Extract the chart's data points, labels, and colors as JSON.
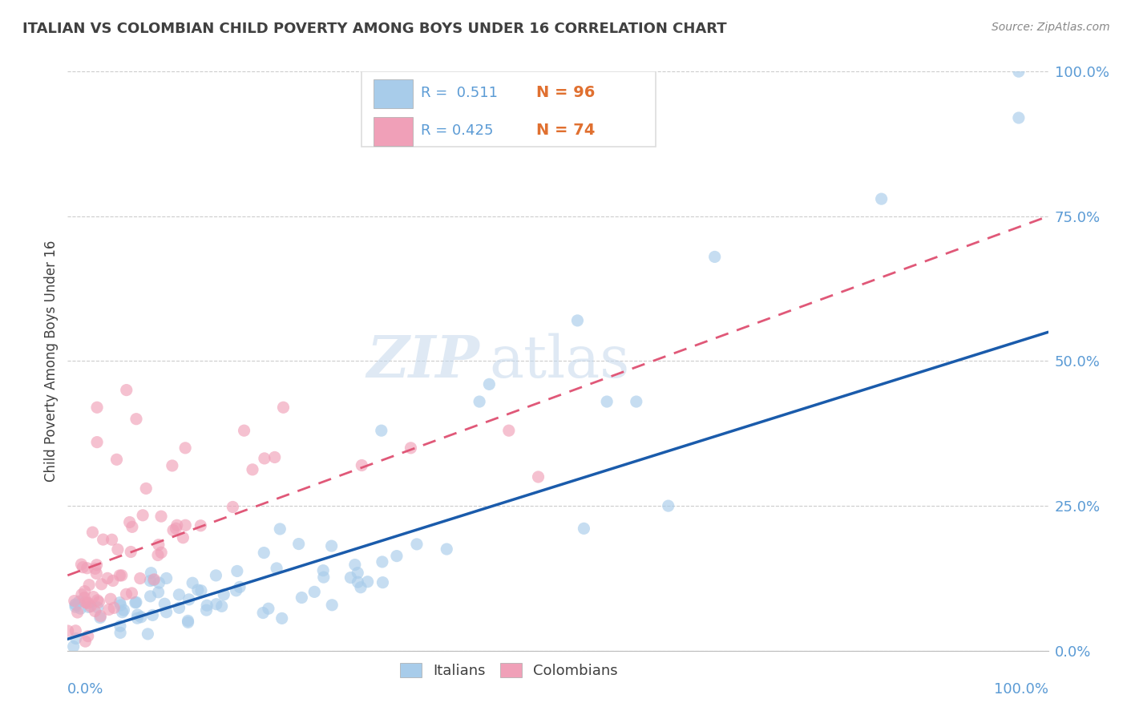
{
  "title": "ITALIAN VS COLOMBIAN CHILD POVERTY AMONG BOYS UNDER 16 CORRELATION CHART",
  "source": "Source: ZipAtlas.com",
  "xlabel_bottom_left": "0.0%",
  "xlabel_bottom_right": "100.0%",
  "ylabel": "Child Poverty Among Boys Under 16",
  "ytick_labels": [
    "0.0%",
    "25.0%",
    "50.0%",
    "75.0%",
    "100.0%"
  ],
  "ytick_values": [
    0.0,
    0.25,
    0.5,
    0.75,
    1.0
  ],
  "legend_italian": "Italians",
  "legend_colombian": "Colombians",
  "R_italian": 0.511,
  "N_italian": 96,
  "R_colombian": 0.425,
  "N_colombian": 74,
  "color_italian": "#A8CCEA",
  "color_colombian": "#F0A0B8",
  "color_italian_line": "#1A5BAB",
  "color_colombian_line": "#E05878",
  "watermark_zip": "ZIP",
  "watermark_atlas": "atlas",
  "background_color": "#FFFFFF",
  "grid_color": "#CCCCCC",
  "title_color": "#404040",
  "axis_label_color": "#5B9BD5",
  "legend_box_color": "#DDDDDD"
}
